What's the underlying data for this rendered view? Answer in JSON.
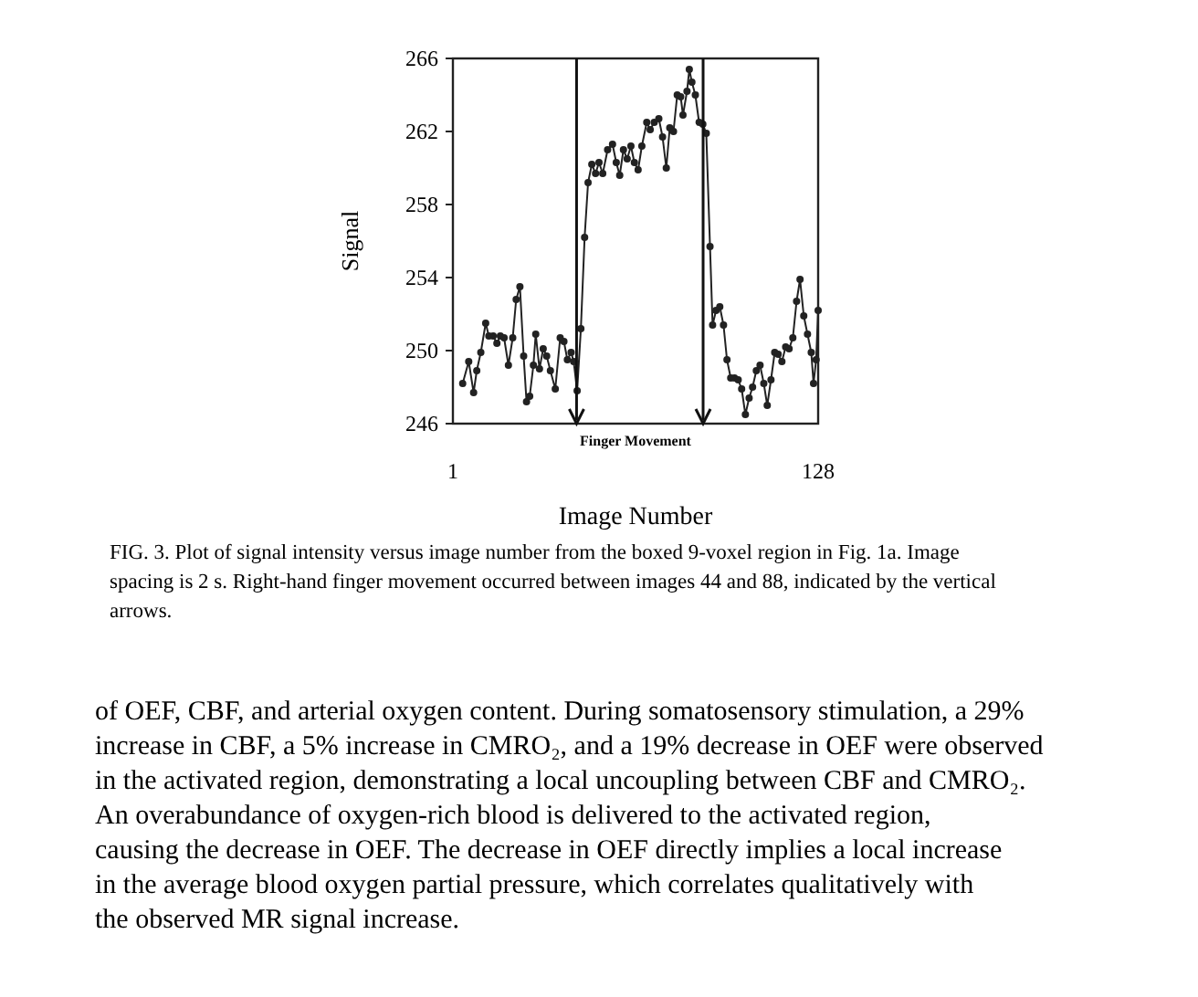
{
  "chart_data": {
    "type": "line",
    "xlabel": "Image Number",
    "ylabel": "Signal",
    "x": [
      4.4,
      6.5,
      8.2,
      9.3,
      10.7,
      12.4,
      13.5,
      15,
      16.3,
      17.5,
      18.8,
      20.3,
      21.8,
      23,
      24.3,
      25.6,
      26.6,
      27.7,
      29,
      29.8,
      31.1,
      32.4,
      33.6,
      34.9,
      36.6,
      38.3,
      39.6,
      40.8,
      42.1,
      43,
      44.2,
      45.5,
      46.8,
      48,
      49.3,
      50.6,
      51.8,
      53.1,
      54.8,
      56.5,
      57.8,
      59,
      60.3,
      61.6,
      62.9,
      64.1,
      65.4,
      66.7,
      68.4,
      69.6,
      71,
      72.6,
      73.9,
      75.2,
      76.4,
      77.7,
      79,
      80.2,
      81,
      82.4,
      83.2,
      84.1,
      85.3,
      86.6,
      87.9,
      89.1,
      90.4,
      91.3,
      92.5,
      93.8,
      95.1,
      96.3,
      97.6,
      98.9,
      100.2,
      101.4,
      102.7,
      104,
      105.2,
      106.5,
      107.8,
      109.1,
      110.3,
      111.6,
      112.9,
      114.1,
      115.4,
      116.7,
      117.9,
      119.2,
      120.5,
      121.7,
      123,
      124.3,
      125.6,
      126.4,
      127.3,
      128
    ],
    "series": [
      {
        "color": "#222222",
        "values": [
          248.2,
          249.4,
          247.7,
          248.9,
          249.9,
          251.5,
          250.8,
          250.8,
          250.4,
          250.8,
          250.7,
          249.2,
          250.7,
          252.8,
          253.5,
          249.7,
          247.2,
          247.5,
          249.2,
          250.9,
          249,
          250.1,
          249.7,
          248.9,
          247.9,
          250.7,
          250.5,
          249.5,
          249.9,
          249.4,
          247.8,
          251.2,
          256.2,
          259.2,
          260.2,
          259.7,
          260.3,
          259.7,
          261,
          261.3,
          260.3,
          259.6,
          261,
          260.5,
          261.2,
          260.3,
          259.9,
          261.2,
          262.5,
          262.1,
          262.5,
          262.7,
          261.7,
          260,
          262.2,
          262,
          264,
          263.9,
          262.9,
          264.2,
          265.4,
          264.7,
          264,
          262.5,
          262.4,
          261.9,
          255.7,
          251.4,
          252.2,
          252.4,
          251.4,
          249.5,
          248.5,
          248.5,
          248.4,
          247.9,
          246.5,
          247.4,
          248,
          248.9,
          249.2,
          248.2,
          247,
          248.4,
          249.9,
          249.8,
          249.4,
          250.2,
          250.1,
          250.7,
          252.7,
          253.9,
          251.9,
          250.9,
          249.9,
          248.2,
          249.5,
          252.2
        ]
      }
    ],
    "xlim": [
      1,
      128
    ],
    "xticks": [
      1,
      128
    ],
    "ylim": [
      246,
      266
    ],
    "yticks": [
      246,
      250,
      254,
      258,
      262,
      266
    ],
    "marker": "circle",
    "line_style": "solid",
    "ref_lines": [
      {
        "axis": "x",
        "value": 44,
        "color": "#111111",
        "line_style": "solid"
      },
      {
        "axis": "x",
        "value": 88,
        "color": "#111111",
        "line_style": "solid"
      }
    ],
    "annotations": [
      "Finger Movement",
      "FIG. 3. Plot of signal intensity versus image number from the boxed 9-voxel region in Fig. 1a. Image spacing is 2 s. Right-hand finger movement occurred between images 44 and 88, indicated by the vertical arrows.",
      "of OEF, CBF, and arterial oxygen content. During somatosensory stimulation, a 29% increase in CBF, a 5% increase in CMRO₂, and a 19% decrease in OEF were observed in the activated region, demonstrating a local uncoupling between CBF and CMRO₂. An overabundance of oxygen-rich blood is delivered to the activated region, causing the decrease in OEF. The decrease in OEF directly implies a local increase in the average blood oxygen partial pressure, which correlates qualitatively with the observed MR signal increase."
    ]
  }
}
